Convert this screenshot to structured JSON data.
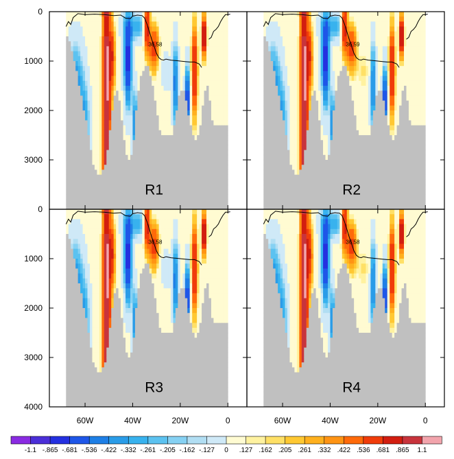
{
  "chart_data": {
    "type": "heatmap",
    "xlim": [
      75,
      -8
    ],
    "ylim": [
      4000,
      0
    ],
    "x_ticks": [
      {
        "value": 60,
        "label": "60W"
      },
      {
        "value": 40,
        "label": "40W"
      },
      {
        "value": 20,
        "label": "20W"
      },
      {
        "value": 0,
        "label": "0"
      }
    ],
    "y_ticks": [
      {
        "value": 0,
        "label": "0"
      },
      {
        "value": 1000,
        "label": "1000"
      },
      {
        "value": 2000,
        "label": "2000"
      },
      {
        "value": 3000,
        "label": "3000"
      },
      {
        "value": 4000,
        "label": "4000"
      }
    ],
    "panels": [
      {
        "label": "R1",
        "contour_label": "36.58"
      },
      {
        "label": "R2",
        "contour_label": "36.59"
      },
      {
        "label": "R3",
        "contour_label": "36.58"
      },
      {
        "label": "R4",
        "contour_label": "36.58"
      }
    ],
    "contour_line": {
      "lon": [
        68,
        67,
        66,
        65,
        63,
        60,
        56,
        52,
        48,
        45,
        43,
        41,
        40,
        38,
        36,
        35,
        34,
        33,
        32,
        31,
        30,
        29,
        28,
        27,
        26,
        24,
        22,
        20,
        18,
        16,
        14,
        12,
        11
      ],
      "depth": [
        300,
        200,
        260,
        120,
        40,
        60,
        50,
        60,
        80,
        70,
        130,
        140,
        90,
        70,
        80,
        130,
        250,
        400,
        560,
        700,
        840,
        930,
        970,
        980,
        960,
        980,
        990,
        1000,
        1010,
        1020,
        1020,
        1060,
        1130
      ]
    },
    "contour_line_east": {
      "lon": [
        8,
        7,
        6,
        5,
        4,
        3,
        2,
        1,
        0,
        -1
      ],
      "depth": [
        560,
        520,
        400,
        360,
        300,
        200,
        120,
        60,
        60,
        50
      ]
    },
    "bathymetry": {
      "lon": [
        68,
        67,
        66,
        65,
        64,
        63,
        62,
        61,
        60,
        59,
        58,
        57,
        56,
        55,
        54,
        53,
        52,
        51,
        50,
        49,
        48,
        47,
        46,
        45,
        44,
        43,
        42,
        41,
        40,
        39,
        38,
        37,
        36,
        35,
        34,
        33,
        32,
        31,
        30,
        29,
        28,
        27,
        26,
        25,
        24,
        23,
        22,
        21,
        20,
        19,
        18,
        17,
        16,
        15,
        14,
        13,
        12,
        11,
        10,
        9,
        8,
        7,
        6,
        5,
        4,
        3,
        2,
        1,
        0
      ],
      "depth": [
        400,
        520,
        650,
        850,
        1050,
        1300,
        1550,
        1800,
        2050,
        2300,
        2600,
        2900,
        3150,
        3250,
        3250,
        3250,
        3150,
        3000,
        2600,
        2150,
        1750,
        1500,
        1550,
        1900,
        2400,
        2800,
        3000,
        3000,
        2800,
        2250,
        1750,
        1400,
        1200,
        1050,
        1000,
        1150,
        1350,
        1600,
        1950,
        2250,
        2450,
        2500,
        2450,
        2400,
        2500,
        2450,
        2100,
        1750,
        1550,
        1500,
        1600,
        1900,
        2200,
        2400,
        2500,
        2550,
        2400,
        2050,
        1700,
        1450,
        1500,
        1950,
        2300,
        2300,
        2300,
        2300,
        2300,
        2300,
        2300
      ]
    },
    "colorbar": {
      "levels": [
        "-1.1",
        "-.865",
        "-.681",
        "-.536",
        "-.422",
        "-.332",
        "-.261",
        "-.205",
        "-.162",
        "-.127",
        "0",
        ".127",
        ".162",
        ".205",
        ".261",
        ".332",
        ".422",
        ".536",
        ".681",
        ".865",
        "1.1"
      ],
      "colors": [
        "#8a2be2",
        "#4b2fd8",
        "#2430e0",
        "#1e56e8",
        "#1e7fe6",
        "#2a9ce8",
        "#38b2ee",
        "#5cc2f0",
        "#86d1f3",
        "#b1def3",
        "#cfe9f7",
        "#fffbd2",
        "#fff2a0",
        "#ffe066",
        "#ffc832",
        "#ffb01e",
        "#ff9414",
        "#ff6a0a",
        "#f03c0a",
        "#d21e10",
        "#c8343c",
        "#f2a4ac"
      ]
    },
    "land_color": "#c0c0c0"
  }
}
